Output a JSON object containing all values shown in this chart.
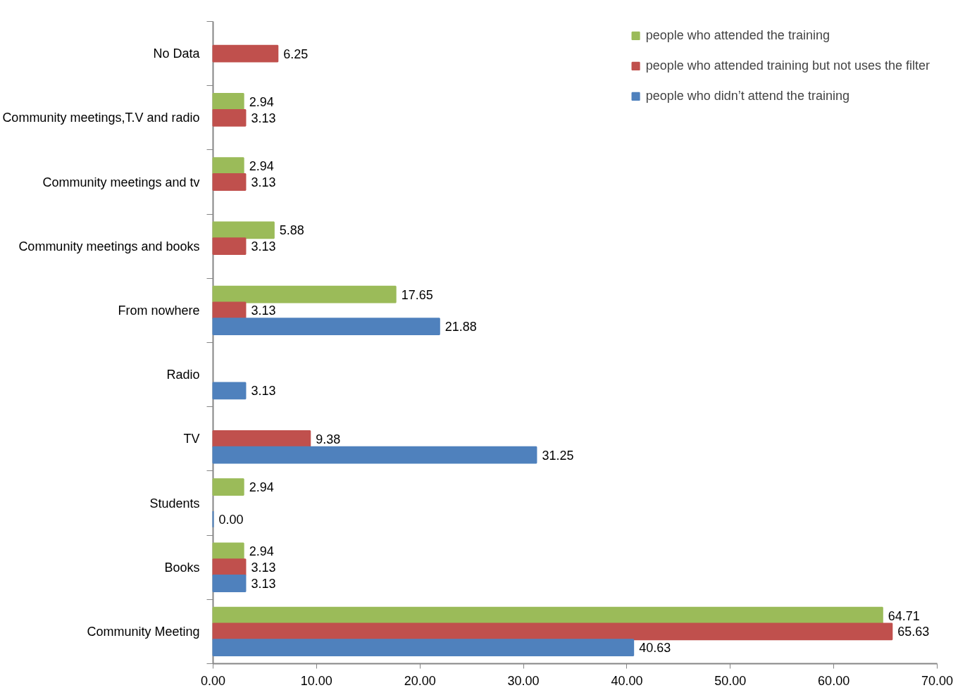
{
  "chart_data": {
    "type": "bar",
    "orientation": "horizontal",
    "categories": [
      "No Data",
      "Community meetings,T.V and radio",
      "Community meetings and tv",
      "Community meetings and books",
      "From nowhere",
      "Radio",
      "TV",
      "Students",
      "Books",
      "Community Meeting"
    ],
    "series": [
      {
        "name": "people who attended the training",
        "color": "#9bbb59",
        "values": [
          null,
          2.94,
          2.94,
          5.88,
          17.65,
          null,
          null,
          2.94,
          2.94,
          64.71
        ],
        "value_labels": [
          null,
          "2.94",
          "2.94",
          "5.88",
          "17.65",
          null,
          null,
          "2.94",
          "2.94",
          "64.71"
        ]
      },
      {
        "name": "people who attended training but not uses the filter",
        "color": "#c0504d",
        "values": [
          6.25,
          3.13,
          3.13,
          3.13,
          3.13,
          null,
          9.38,
          null,
          3.13,
          65.63
        ],
        "value_labels": [
          "6.25",
          "3.13",
          "3.13",
          "3.13",
          "3.13",
          null,
          "9.38",
          null,
          "3.13",
          "65.63"
        ]
      },
      {
        "name": "people who didn’t attend the training",
        "color": "#4f81bd",
        "values": [
          null,
          null,
          null,
          null,
          21.88,
          3.13,
          31.25,
          0,
          3.13,
          40.63
        ],
        "value_labels": [
          null,
          null,
          null,
          null,
          "21.88",
          "3.13",
          "31.25",
          "0.00",
          "3.13",
          "40.63"
        ]
      }
    ],
    "xlim": [
      0,
      70
    ],
    "xticks": [
      {
        "value": 0,
        "label": "0.00"
      },
      {
        "value": 10,
        "label": "10.00"
      },
      {
        "value": 20,
        "label": "20.00"
      },
      {
        "value": 30,
        "label": "30.00"
      },
      {
        "value": 40,
        "label": "40.00"
      },
      {
        "value": 50,
        "label": "50.00"
      },
      {
        "value": 60,
        "label": "60.00"
      },
      {
        "value": 70,
        "label": "70.00"
      }
    ],
    "legend": "top right",
    "grid": false
  }
}
